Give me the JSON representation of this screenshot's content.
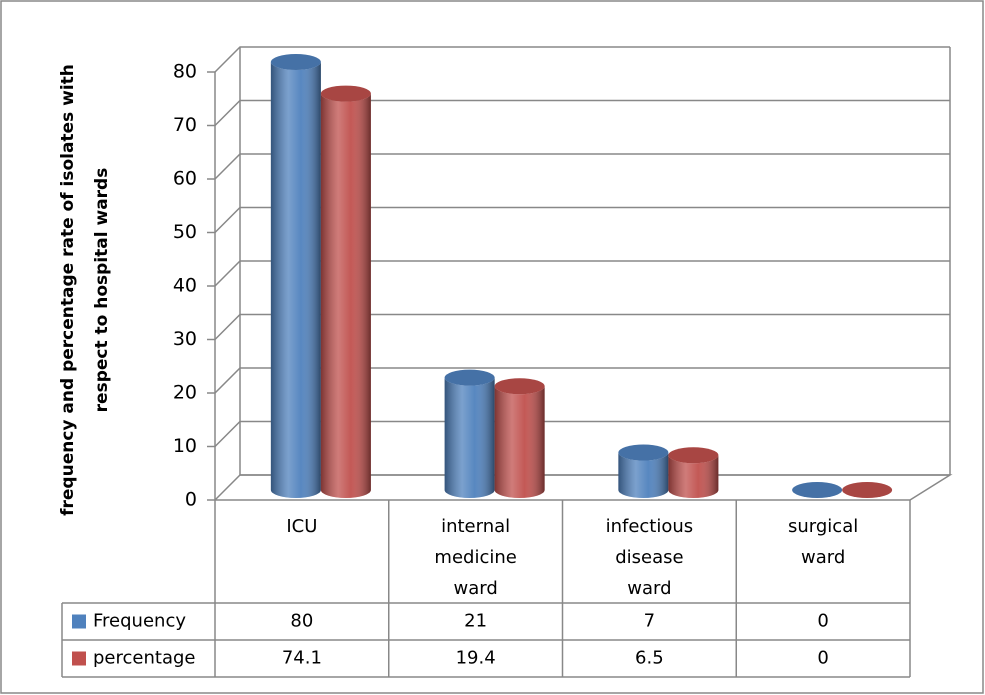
{
  "chart_data": {
    "type": "bar3d",
    "y_label": [
      "frequency and percentage rate of isolates with",
      "respect to hospital wards"
    ],
    "categories": [
      "ICU",
      "internal medicine ward",
      "infectious disease ward",
      "surgical ward"
    ],
    "series": [
      {
        "name": "Frequency",
        "color": "#4f81bd",
        "values": [
          80,
          21,
          7,
          0
        ]
      },
      {
        "name": "percentage",
        "color": "#c0504d",
        "values": [
          74.1,
          19.4,
          6.5,
          0
        ]
      }
    ],
    "ylim": [
      0,
      80
    ],
    "yticks": [
      0,
      10,
      20,
      30,
      40,
      50,
      60,
      70,
      80
    ],
    "grid": true,
    "data_table": true
  }
}
